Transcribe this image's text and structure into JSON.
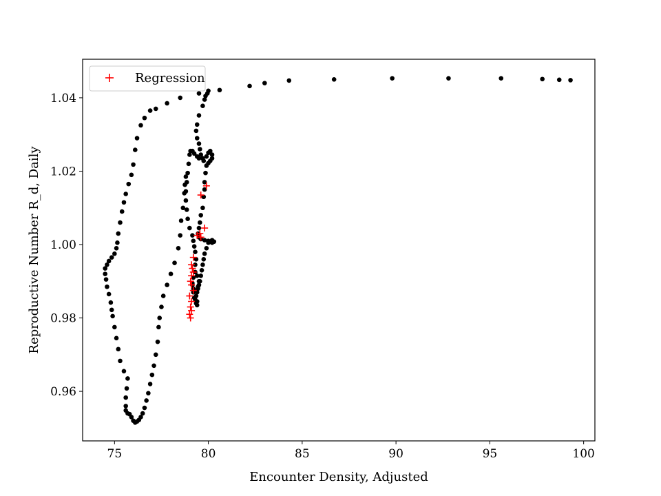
{
  "chart_data": {
    "type": "scatter",
    "title": "",
    "xlabel": "Encounter Density, Adjusted",
    "ylabel": "Reproductive Number R_d, Daily",
    "xlim": [
      73.3,
      100.6
    ],
    "ylim": [
      0.9465,
      1.0505
    ],
    "xticks": [
      75,
      80,
      85,
      90,
      95,
      100
    ],
    "yticks": [
      0.96,
      0.98,
      1.0,
      1.02,
      1.04
    ],
    "ytick_labels": [
      "0.96",
      "0.98",
      "1.00",
      "1.02",
      "1.04"
    ],
    "grid": false,
    "legend": {
      "position": "upper-left",
      "entries": [
        {
          "label": "Regression",
          "marker": "+",
          "color": "#ff0000"
        }
      ]
    },
    "series": [
      {
        "marker": "circle",
        "color": "#000000",
        "points": [
          [
            99.3,
            1.0448
          ],
          [
            98.7,
            1.0449
          ],
          [
            97.8,
            1.0451
          ],
          [
            95.6,
            1.0453
          ],
          [
            92.8,
            1.0453
          ],
          [
            89.8,
            1.0453
          ],
          [
            86.7,
            1.045
          ],
          [
            84.3,
            1.0447
          ],
          [
            83.0,
            1.044
          ],
          [
            82.2,
            1.0432
          ],
          [
            80.6,
            1.0421
          ],
          [
            80.0,
            1.0419
          ],
          [
            79.95,
            1.0412
          ],
          [
            79.85,
            1.0405
          ],
          [
            79.8,
            1.0395
          ],
          [
            79.7,
            1.0378
          ],
          [
            79.5,
            1.0352
          ],
          [
            79.4,
            1.0327
          ],
          [
            79.35,
            1.031
          ],
          [
            79.4,
            1.029
          ],
          [
            79.5,
            1.0275
          ],
          [
            79.55,
            1.026
          ],
          [
            79.6,
            1.0245
          ],
          [
            79.7,
            1.0235
          ],
          [
            79.75,
            1.0228
          ],
          [
            79.9,
            1.024
          ],
          [
            80.0,
            1.025
          ],
          [
            80.1,
            1.0255
          ],
          [
            80.2,
            1.0245
          ],
          [
            80.2,
            1.0235
          ],
          [
            80.1,
            1.0228
          ],
          [
            80.0,
            1.0222
          ],
          [
            79.9,
            1.0215
          ],
          [
            79.85,
            1.0195
          ],
          [
            79.8,
            1.017
          ],
          [
            79.8,
            1.015
          ],
          [
            79.75,
            1.013
          ],
          [
            79.7,
            1.01
          ],
          [
            79.6,
            1.008
          ],
          [
            79.55,
            1.006
          ],
          [
            79.5,
            1.0045
          ],
          [
            79.45,
            1.003
          ],
          [
            79.5,
            1.002
          ],
          [
            79.6,
            1.0015
          ],
          [
            79.8,
            1.0012
          ],
          [
            80.0,
            1.001
          ],
          [
            80.2,
            1.0005
          ],
          [
            80.3,
            1.0008
          ],
          [
            80.2,
            1.0012
          ],
          [
            80.0,
            1.0005
          ],
          [
            79.9,
            0.999
          ],
          [
            79.8,
            0.9975
          ],
          [
            79.75,
            0.996
          ],
          [
            79.7,
            0.9945
          ],
          [
            79.65,
            0.993
          ],
          [
            79.6,
            0.9915
          ],
          [
            79.55,
            0.99
          ],
          [
            79.5,
            0.989
          ],
          [
            79.45,
            0.988
          ],
          [
            79.4,
            0.987
          ],
          [
            79.35,
            0.986
          ],
          [
            79.3,
            0.985
          ],
          [
            79.35,
            0.984
          ],
          [
            79.4,
            0.9835
          ],
          [
            79.4,
            0.9845
          ],
          [
            79.25,
            0.9855
          ],
          [
            79.2,
            0.987
          ],
          [
            79.15,
            0.989
          ],
          [
            79.2,
            0.991
          ],
          [
            79.3,
            0.9925
          ],
          [
            79.4,
            0.9915
          ],
          [
            79.5,
            0.99
          ],
          [
            79.45,
            0.9885
          ],
          [
            79.35,
            0.9875
          ],
          [
            79.2,
            0.988
          ],
          [
            79.15,
            0.9895
          ],
          [
            79.3,
            0.9945
          ],
          [
            79.35,
            0.996
          ],
          [
            79.3,
            0.998
          ],
          [
            79.25,
            0.9995
          ],
          [
            79.2,
            1.001
          ],
          [
            79.15,
            1.0025
          ],
          [
            79.0,
            1.0045
          ],
          [
            78.9,
            1.007
          ],
          [
            78.85,
            1.0095
          ],
          [
            78.8,
            1.012
          ],
          [
            78.8,
            1.0145
          ],
          [
            78.85,
            1.017
          ],
          [
            78.9,
            1.0195
          ],
          [
            78.95,
            1.022
          ],
          [
            79.0,
            1.0245
          ],
          [
            79.05,
            1.0255
          ],
          [
            79.15,
            1.0255
          ],
          [
            79.25,
            1.0248
          ],
          [
            79.4,
            1.024
          ],
          [
            79.5,
            1.0235
          ],
          [
            78.8,
            1.0185
          ],
          [
            78.75,
            1.0163
          ],
          [
            78.72,
            1.014
          ],
          [
            78.65,
            1.01
          ],
          [
            78.55,
            1.0065
          ],
          [
            78.5,
            1.0025
          ],
          [
            78.4,
            0.999
          ],
          [
            78.2,
            0.995
          ],
          [
            78.0,
            0.992
          ],
          [
            77.8,
            0.989
          ],
          [
            77.6,
            0.986
          ],
          [
            77.5,
            0.983
          ],
          [
            77.4,
            0.98
          ],
          [
            77.35,
            0.9775
          ],
          [
            77.3,
            0.9735
          ],
          [
            77.2,
            0.97
          ],
          [
            77.1,
            0.967
          ],
          [
            77.0,
            0.9645
          ],
          [
            76.9,
            0.962
          ],
          [
            76.8,
            0.9595
          ],
          [
            76.7,
            0.9575
          ],
          [
            76.6,
            0.9555
          ],
          [
            76.5,
            0.954
          ],
          [
            76.4,
            0.953
          ],
          [
            76.3,
            0.9522
          ],
          [
            76.2,
            0.9518
          ],
          [
            76.1,
            0.9515
          ],
          [
            76.0,
            0.952
          ],
          [
            75.9,
            0.953
          ],
          [
            75.8,
            0.9538
          ],
          [
            75.7,
            0.954
          ],
          [
            75.6,
            0.9548
          ],
          [
            75.6,
            0.956
          ],
          [
            75.6,
            0.9583
          ],
          [
            75.65,
            0.9608
          ],
          [
            75.7,
            0.9635
          ],
          [
            75.5,
            0.9655
          ],
          [
            75.3,
            0.9683
          ],
          [
            75.2,
            0.9715
          ],
          [
            75.1,
            0.9745
          ],
          [
            75.0,
            0.9775
          ],
          [
            74.9,
            0.9805
          ],
          [
            74.85,
            0.9822
          ],
          [
            74.8,
            0.9842
          ],
          [
            74.7,
            0.9865
          ],
          [
            74.6,
            0.9885
          ],
          [
            74.55,
            0.9905
          ],
          [
            74.5,
            0.992
          ],
          [
            74.5,
            0.9935
          ],
          [
            74.6,
            0.9945
          ],
          [
            74.7,
            0.9955
          ],
          [
            74.85,
            0.9965
          ],
          [
            75.0,
            0.9975
          ],
          [
            75.1,
            0.999
          ],
          [
            75.15,
            1.0005
          ],
          [
            75.2,
            1.003
          ],
          [
            75.3,
            1.006
          ],
          [
            75.4,
            1.009
          ],
          [
            75.5,
            1.0115
          ],
          [
            75.6,
            1.0138
          ],
          [
            75.75,
            1.0165
          ],
          [
            75.9,
            1.019
          ],
          [
            76.0,
            1.0218
          ],
          [
            76.1,
            1.0258
          ],
          [
            76.2,
            1.029
          ],
          [
            76.4,
            1.0325
          ],
          [
            76.6,
            1.0345
          ],
          [
            76.9,
            1.0365
          ],
          [
            77.2,
            1.037
          ],
          [
            77.8,
            1.0385
          ],
          [
            78.5,
            1.04
          ],
          [
            79.5,
            1.0412
          ]
        ]
      },
      {
        "name": "Regression",
        "marker": "+",
        "color": "#ff0000",
        "points": [
          [
            79.9,
            1.016
          ],
          [
            79.6,
            1.0135
          ],
          [
            79.8,
            1.0045
          ],
          [
            79.55,
            1.003
          ],
          [
            79.6,
            1.002
          ],
          [
            79.4,
            1.0025
          ],
          [
            79.2,
            0.9965
          ],
          [
            79.1,
            0.9945
          ],
          [
            79.15,
            0.9935
          ],
          [
            79.2,
            0.9925
          ],
          [
            79.1,
            0.9915
          ],
          [
            79.05,
            0.99
          ],
          [
            79.1,
            0.989
          ],
          [
            79.2,
            0.9875
          ],
          [
            79.0,
            0.986
          ],
          [
            79.1,
            0.9845
          ],
          [
            79.05,
            0.983
          ],
          [
            79.1,
            0.982
          ],
          [
            79.0,
            0.981
          ],
          [
            79.05,
            0.98
          ]
        ]
      }
    ]
  }
}
